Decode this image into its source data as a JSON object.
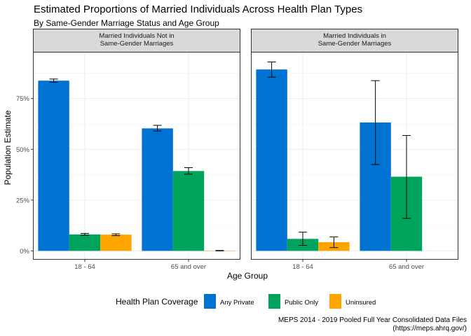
{
  "chart_data": {
    "type": "bar",
    "title": "Estimated Proportions of Married Individuals Across Health Plan Types",
    "subtitle": "By Same-Gender Marriage Status and Age Group",
    "xlabel": "Age Group",
    "ylabel": "Population Estimate",
    "ylim": [
      -0.04,
      0.98
    ],
    "y_ticks": [
      {
        "value": 0,
        "label": "0%"
      },
      {
        "value": 0.25,
        "label": "25%"
      },
      {
        "value": 0.5,
        "label": "50%"
      },
      {
        "value": 0.75,
        "label": "75%"
      }
    ],
    "categories": [
      "18 - 64",
      "65 and over"
    ],
    "grid": true,
    "legend": {
      "title": "Health Plan Coverage",
      "position": "bottom",
      "entries": [
        {
          "name": "Any Private",
          "color": "#0072D2"
        },
        {
          "name": "Public Only",
          "color": "#00A35C"
        },
        {
          "name": "Uninsured",
          "color": "#FFA500"
        }
      ]
    },
    "panels": [
      {
        "strip": [
          "Married Individuals Not in",
          "Same-Gender Marriages"
        ],
        "series": [
          {
            "name": "Any Private",
            "values": [
              0.838,
              0.603
            ],
            "lower": [
              0.83,
              0.59
            ],
            "upper": [
              0.846,
              0.618
            ]
          },
          {
            "name": "Public Only",
            "values": [
              0.081,
              0.393
            ],
            "lower": [
              0.077,
              0.378
            ],
            "upper": [
              0.086,
              0.41
            ]
          },
          {
            "name": "Uninsured",
            "values": [
              0.08,
              0.001
            ],
            "lower": [
              0.075,
              0.0
            ],
            "upper": [
              0.084,
              0.002
            ]
          }
        ]
      },
      {
        "strip": [
          "Married Individuals in",
          "Same-Gender Marriages"
        ],
        "series": [
          {
            "name": "Any Private",
            "values": [
              0.893,
              0.632
            ],
            "lower": [
              0.855,
              0.425
            ],
            "upper": [
              0.93,
              0.838
            ]
          },
          {
            "name": "Public Only",
            "values": [
              0.059,
              0.365
            ],
            "lower": [
              0.027,
              0.16
            ],
            "upper": [
              0.092,
              0.568
            ]
          },
          {
            "name": "Uninsured",
            "values": [
              0.043,
              null
            ],
            "lower": [
              0.016,
              null
            ],
            "upper": [
              0.069,
              null
            ]
          }
        ]
      }
    ],
    "caption": [
      "MEPS 2014 - 2019 Pooled Full Year Consolidated Data Files",
      "(https://meps.ahrq.gov/)"
    ]
  }
}
